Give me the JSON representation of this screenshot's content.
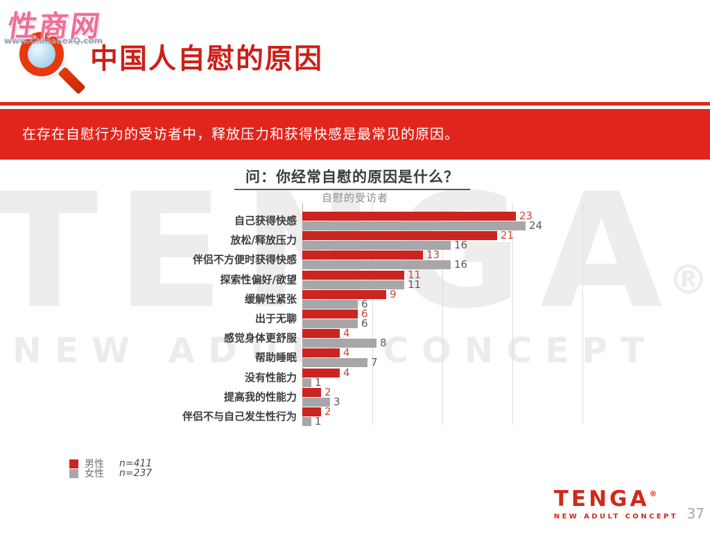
{
  "site_logo": {
    "name": "性商网",
    "url": "www.ChinaSexQ.com"
  },
  "icons": {
    "header_icon": "magnifying-glass"
  },
  "header": {
    "title": "中国人自慰的原因"
  },
  "banner": {
    "text": "在存在自慰行为的受访者中，释放压力和获得快感是最常见的原因。"
  },
  "colors": {
    "brand_red": "#e0261c",
    "male_bar": "#cc2420",
    "female_bar": "#a7a7aa",
    "male_value_label": "#c9473d",
    "female_value_label": "#595959"
  },
  "chart_data": {
    "type": "bar",
    "orientation": "horizontal",
    "title": "问：你经常自慰的原因是什么？",
    "subtitle": "自慰的受访者",
    "unit": "percent",
    "xlim": [
      0,
      30
    ],
    "grid": true,
    "legend_position": "bottom-left",
    "categories": [
      "自己获得快感",
      "放松/释放压力",
      "伴侣不方便时获得快感",
      "探索性偏好/欲望",
      "缓解性紧张",
      "出于无聊",
      "感觉身体更舒服",
      "帮助睡眠",
      "没有性能力",
      "提高我的性能力",
      "伴侣不与自己发生性行为"
    ],
    "series": [
      {
        "name": "男性",
        "n_label": "n=411",
        "color": "#cc2420",
        "values": [
          23,
          21,
          13,
          11,
          9,
          6,
          4,
          4,
          4,
          2,
          2
        ]
      },
      {
        "name": "女性",
        "n_label": "n=237",
        "color": "#a7a7aa",
        "values": [
          24,
          16,
          16,
          11,
          6,
          6,
          8,
          7,
          1,
          3,
          1
        ]
      }
    ]
  },
  "watermark": {
    "text": "TENGA",
    "registered": "®",
    "subtext": "NEW ADULT CONCEPT"
  },
  "footer": {
    "brand": "TENGA",
    "registered": "®",
    "brand_sub": "NEW ADULT CONCEPT",
    "page_number": "37"
  }
}
